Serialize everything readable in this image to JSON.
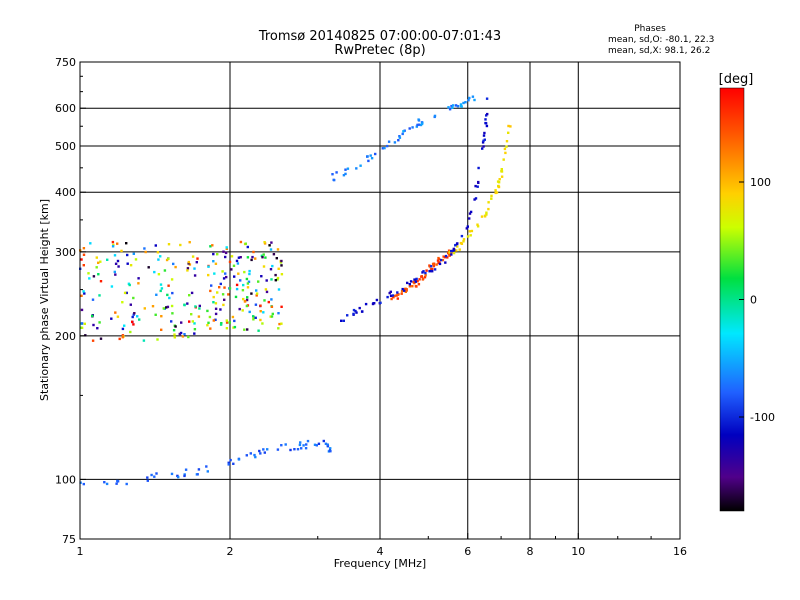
{
  "chart_data": {
    "type": "scatter",
    "title": "Tromsø 20140825 07:00:00-07:01:43",
    "subtitle": "RwPretec (8p)",
    "xlabel": "Frequency [MHz]",
    "ylabel": "Stationary phase Virtual Height [km]",
    "x_scale": "log",
    "y_scale": "log",
    "xlim": [
      1,
      16
    ],
    "ylim": [
      75,
      750
    ],
    "x_ticks": [
      1,
      2,
      4,
      6,
      8,
      10,
      16
    ],
    "x_tick_labels": [
      "1",
      "2",
      "4",
      "6",
      "8",
      "10",
      "16"
    ],
    "y_ticks": [
      75,
      100,
      200,
      300,
      400,
      500,
      600,
      750
    ],
    "y_tick_labels": [
      "75",
      "100",
      "200",
      "300",
      "400",
      "500",
      "600",
      "750"
    ],
    "grid": true,
    "phases_box": {
      "heading": "Phases",
      "line_o": "mean, sd,O: -80.1, 22.3",
      "line_x": "mean, sd,X: 98.1, 26.2"
    },
    "colorbar": {
      "label": "[deg]",
      "range": [
        -180,
        180
      ],
      "ticks": [
        100,
        0,
        -100
      ],
      "tick_labels": [
        "100",
        "0",
        "-100"
      ]
    },
    "series": [
      {
        "freq": [
          4.2,
          4.4,
          4.6,
          4.8,
          5.0,
          5.2,
          5.4,
          5.6
        ],
        "height": [
          236,
          245,
          252,
          262,
          275,
          285,
          293,
          300
        ],
        "phase": 150
      },
      {
        "freq": [
          5.4,
          5.8,
          6.2,
          6.6,
          6.9,
          7.1,
          7.3
        ],
        "height": [
          292,
          310,
          335,
          370,
          410,
          470,
          560
        ],
        "phase": 90
      },
      {
        "freq": [
          3.3,
          3.6,
          4.0,
          4.4,
          4.8,
          5.2,
          5.6,
          6.0,
          6.3,
          6.5,
          6.6
        ],
        "height": [
          215,
          225,
          235,
          250,
          265,
          280,
          300,
          340,
          420,
          530,
          640
        ],
        "phase": -110
      },
      {
        "freq": [
          3.2,
          3.6,
          4.0,
          4.4,
          4.8,
          5.3,
          5.8,
          6.2
        ],
        "height": [
          430,
          455,
          490,
          525,
          560,
          580,
          610,
          635
        ],
        "phase": -70
      },
      {
        "freq": [
          1.0,
          1.3,
          1.6,
          1.9,
          2.2,
          2.5,
          2.8,
          3.1,
          3.2
        ],
        "height": [
          97,
          100,
          103,
          106,
          112,
          116,
          118,
          120,
          113
        ],
        "phase": -80
      }
    ],
    "scatter_regions": [
      {
        "freq_range": [
          1.0,
          1.75
        ],
        "height_range": [
          195,
          315
        ],
        "phase": "mixed"
      },
      {
        "freq_range": [
          1.8,
          2.55
        ],
        "height_range": [
          205,
          315
        ],
        "phase": "mixed"
      }
    ]
  }
}
